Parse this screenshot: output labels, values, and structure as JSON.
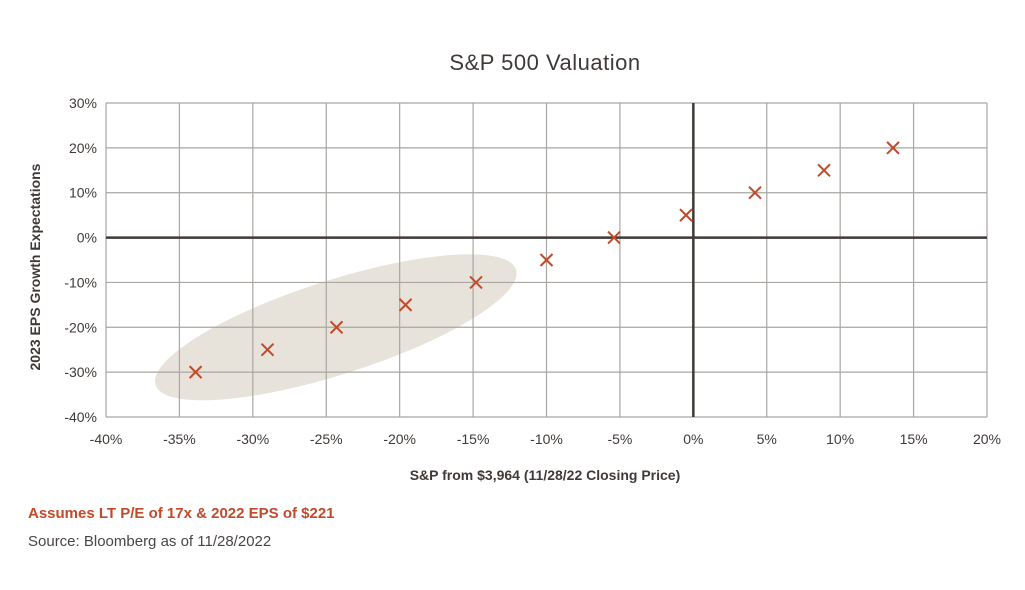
{
  "chart_data": {
    "type": "scatter",
    "title": "S&P 500 Valuation",
    "xlabel": "S&P from $3,964 (11/28/22 Closing Price)",
    "ylabel": "2023 EPS Growth Expectations",
    "xlim": [
      -40,
      20
    ],
    "ylim": [
      -40,
      30
    ],
    "x_ticks": [
      -40,
      -35,
      -30,
      -25,
      -20,
      -15,
      -10,
      -5,
      0,
      5,
      10,
      15,
      20
    ],
    "y_ticks": [
      -40,
      -30,
      -20,
      -10,
      0,
      10,
      20,
      30
    ],
    "x_tick_labels": [
      "-40%",
      "-35%",
      "-30%",
      "-25%",
      "-20%",
      "-15%",
      "-10%",
      "-5%",
      "0%",
      "5%",
      "10%",
      "15%",
      "20%"
    ],
    "y_tick_labels": [
      "-40%",
      "-30%",
      "-20%",
      "-10%",
      "0%",
      "10%",
      "20%",
      "30%"
    ],
    "grid": true,
    "marker": "x",
    "marker_color": "#c14a2a",
    "highlight_color": "#e7e2da",
    "highlighted_points": 5,
    "points": [
      {
        "x": -33.9,
        "y": -30
      },
      {
        "x": -29.0,
        "y": -25
      },
      {
        "x": -24.3,
        "y": -20
      },
      {
        "x": -19.6,
        "y": -15
      },
      {
        "x": -14.8,
        "y": -10
      },
      {
        "x": -10.0,
        "y": -5
      },
      {
        "x": -5.4,
        "y": 0
      },
      {
        "x": -0.5,
        "y": 5
      },
      {
        "x": 4.2,
        "y": 10
      },
      {
        "x": 8.9,
        "y": 15
      },
      {
        "x": 13.6,
        "y": 20
      }
    ]
  },
  "notes": {
    "assumption": "Assumes LT P/E of 17x & 2022 EPS of $221",
    "source": "Source: Bloomberg as of 11/28/2022"
  }
}
